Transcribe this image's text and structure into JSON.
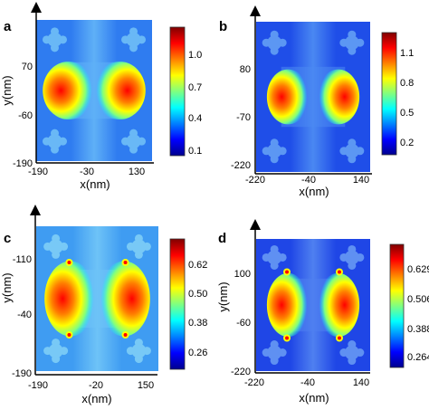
{
  "colormap": [
    "#00008f",
    "#0000ff",
    "#0080ff",
    "#00ffff",
    "#80ff80",
    "#ffff00",
    "#ff8000",
    "#ff0000",
    "#800000"
  ],
  "chart_data": [
    {
      "type": "heatmap",
      "panel_label": "a",
      "xlabel": "x(nm)",
      "ylabel": "y(nm)",
      "x_ticks": [
        "-190",
        "-30",
        "130"
      ],
      "y_ticks": [
        "70",
        "-60",
        "-190"
      ],
      "colorbar": {
        "ticks": [
          "1.0",
          "0.7",
          "0.4",
          "0.1"
        ],
        "range": [
          0.0,
          1.2
        ]
      }
    },
    {
      "type": "heatmap",
      "panel_label": "b",
      "xlabel": "x(nm)",
      "ylabel": "",
      "x_ticks": [
        "-220",
        "-40",
        "140"
      ],
      "y_ticks": [
        "80",
        "-70",
        "-220"
      ],
      "colorbar": {
        "ticks": [
          "1.1",
          "0.8",
          "0.5",
          "0.2"
        ],
        "range": [
          0.05,
          1.25
        ]
      }
    },
    {
      "type": "heatmap",
      "panel_label": "c",
      "xlabel": "x(nm)",
      "ylabel": "y(nm)",
      "x_ticks": [
        "-190",
        "-20",
        "150"
      ],
      "y_ticks": [
        "-110",
        "-40",
        "-190"
      ],
      "colorbar": {
        "ticks": [
          "0.62",
          "0.50",
          "0.38",
          "0.26"
        ],
        "range": [
          0.22,
          0.68
        ]
      }
    },
    {
      "type": "heatmap",
      "panel_label": "d",
      "xlabel": "x(nm)",
      "ylabel": "y(nm)",
      "x_ticks": [
        "-220",
        "-40",
        "140"
      ],
      "y_ticks": [
        "100",
        "-60",
        "-220"
      ],
      "colorbar": {
        "ticks": [
          "0.629",
          "0.506",
          "0.388",
          "0.264"
        ],
        "range": [
          0.22,
          0.68
        ]
      }
    }
  ]
}
